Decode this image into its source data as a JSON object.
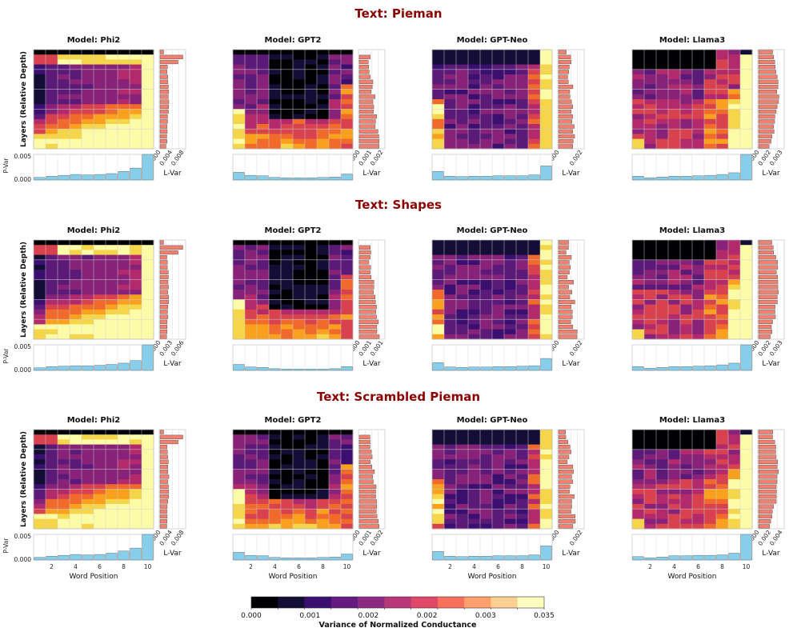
{
  "figure": {
    "y_axis_label": "Layers (Relative Depth)",
    "x_axis_label": "Word Position",
    "lvar_label": "L-Var",
    "pvar_label": "P-Var",
    "pvar_ticks": [
      "0.000",
      "0.005"
    ],
    "word_ticks": [
      "2",
      "4",
      "6",
      "8",
      "10"
    ]
  },
  "colorbar": {
    "label": "Variance of Normalized Conductance",
    "tick_labels": [
      "0.000",
      "0.001",
      "0.002",
      "0.002",
      "0.003",
      "0.035"
    ],
    "colors": [
      "#000004",
      "#140e36",
      "#3b0f70",
      "#641a80",
      "#8c2981",
      "#b73779",
      "#de4968",
      "#f7705c",
      "#fe9f6d",
      "#fecf92",
      "#fcfdbf"
    ],
    "heat_colors": [
      "#000004",
      "#140e36",
      "#3b0f70",
      "#5c1a78",
      "#872278",
      "#b22a6c",
      "#d8414e",
      "#f06a2b",
      "#f9a11e",
      "#f5d64a",
      "#fcfca8"
    ]
  },
  "bar_colors": {
    "layer_bar": "#f08070",
    "position_bar": "#87ceeb"
  },
  "chart_data": [
    {
      "type": "heatmap",
      "text": "Pieman",
      "title": "Text: Pieman",
      "models": [
        {
          "name": "Phi2",
          "title": "Model: Phi2",
          "lvar_ticks": [
            "0.000",
            "0.004",
            "0.008"
          ],
          "lvar_max": 0.009,
          "pvar": [
            0.0006,
            0.0009,
            0.0011,
            0.0013,
            0.0012,
            0.0013,
            0.0015,
            0.002,
            0.0028,
            0.0062
          ],
          "pvar_ylim": [
            0,
            0.006
          ]
        },
        {
          "name": "GPT2",
          "title": "Model: GPT2",
          "lvar_ticks": [
            "0.000",
            "0.001",
            "0.002"
          ],
          "lvar_max": 0.0025,
          "pvar": [
            0.0018,
            0.0011,
            0.001,
            0.0006,
            0.0005,
            0.0005,
            0.0005,
            0.0006,
            0.0007,
            0.0014
          ],
          "pvar_ylim": [
            0,
            0.006
          ]
        },
        {
          "name": "GPT-Neo",
          "title": "Model: GPT-Neo",
          "lvar_ticks": [
            "0.000",
            "0.002"
          ],
          "lvar_max": 0.0028,
          "pvar": [
            0.002,
            0.0009,
            0.0008,
            0.0009,
            0.0009,
            0.001,
            0.001,
            0.001,
            0.0012,
            0.0033
          ],
          "pvar_ylim": [
            0,
            0.006
          ]
        },
        {
          "name": "Llama3",
          "title": "Model: Llama3",
          "lvar_ticks": [
            "0.000",
            "0.002",
            "0.003"
          ],
          "lvar_max": 0.0034,
          "pvar": [
            0.0009,
            0.0005,
            0.0007,
            0.0009,
            0.0009,
            0.001,
            0.0011,
            0.0013,
            0.0017,
            0.0062
          ],
          "pvar_ylim": [
            0,
            0.006
          ]
        }
      ]
    },
    {
      "type": "heatmap",
      "text": "Shapes",
      "title": "Text: Shapes",
      "models": [
        {
          "name": "Phi2",
          "title": "Model: Phi2",
          "lvar_ticks": [
            "0.000",
            "0.003",
            "0.006"
          ],
          "lvar_max": 0.0072,
          "pvar": [
            0.0006,
            0.0009,
            0.001,
            0.0011,
            0.0011,
            0.0012,
            0.0014,
            0.0017,
            0.0023,
            0.0062
          ],
          "pvar_ylim": [
            0,
            0.006
          ]
        },
        {
          "name": "GPT2",
          "title": "Model: GPT2",
          "lvar_ticks": [
            "0.000",
            "0.001",
            "0.001"
          ],
          "lvar_max": 0.0013,
          "pvar": [
            0.0014,
            0.0008,
            0.0007,
            0.0004,
            0.0003,
            0.0003,
            0.0003,
            0.0003,
            0.0004,
            0.0009
          ],
          "pvar_ylim": [
            0,
            0.006
          ]
        },
        {
          "name": "GPT-Neo",
          "title": "Model: GPT-Neo",
          "lvar_ticks": [
            "0.000",
            "0.002"
          ],
          "lvar_max": 0.0028,
          "pvar": [
            0.0018,
            0.0008,
            0.0007,
            0.0008,
            0.0008,
            0.0009,
            0.0009,
            0.001,
            0.0011,
            0.0028
          ],
          "pvar_ylim": [
            0,
            0.006
          ]
        },
        {
          "name": "Llama3",
          "title": "Model: Llama3",
          "lvar_ticks": [
            "0.000",
            "0.002",
            "0.003"
          ],
          "lvar_max": 0.0034,
          "pvar": [
            0.0009,
            0.0005,
            0.0007,
            0.0009,
            0.0009,
            0.001,
            0.0011,
            0.0013,
            0.0017,
            0.0062
          ],
          "pvar_ylim": [
            0,
            0.006
          ]
        }
      ]
    },
    {
      "type": "heatmap",
      "text": "Scrambled Pieman",
      "title": "Text: Scrambled Pieman",
      "models": [
        {
          "name": "Phi2",
          "title": "Model: Phi2",
          "lvar_ticks": [
            "0.000",
            "0.004",
            "0.008"
          ],
          "lvar_max": 0.009,
          "pvar": [
            0.0006,
            0.0009,
            0.0011,
            0.0013,
            0.0012,
            0.0013,
            0.0016,
            0.0021,
            0.0028,
            0.0062
          ],
          "pvar_ylim": [
            0,
            0.006
          ]
        },
        {
          "name": "GPT2",
          "title": "Model: GPT2",
          "lvar_ticks": [
            "0.000",
            "0.001",
            "0.002"
          ],
          "lvar_max": 0.0025,
          "pvar": [
            0.0018,
            0.0011,
            0.001,
            0.0006,
            0.0005,
            0.0005,
            0.0005,
            0.0006,
            0.0007,
            0.0014
          ],
          "pvar_ylim": [
            0,
            0.006
          ]
        },
        {
          "name": "GPT-Neo",
          "title": "Model: GPT-Neo",
          "lvar_ticks": [
            "0.000",
            "0.002"
          ],
          "lvar_max": 0.0028,
          "pvar": [
            0.002,
            0.0009,
            0.0008,
            0.0009,
            0.0009,
            0.001,
            0.001,
            0.001,
            0.0012,
            0.0033
          ],
          "pvar_ylim": [
            0,
            0.006
          ]
        },
        {
          "name": "Llama3",
          "title": "Model: Llama3",
          "lvar_ticks": [
            "0.000",
            "0.002",
            "0.004"
          ],
          "lvar_max": 0.0045,
          "pvar": [
            0.0008,
            0.0005,
            0.0007,
            0.001,
            0.001,
            0.0011,
            0.0011,
            0.0012,
            0.0016,
            0.0062
          ],
          "pvar_ylim": [
            0,
            0.006
          ]
        }
      ]
    }
  ]
}
